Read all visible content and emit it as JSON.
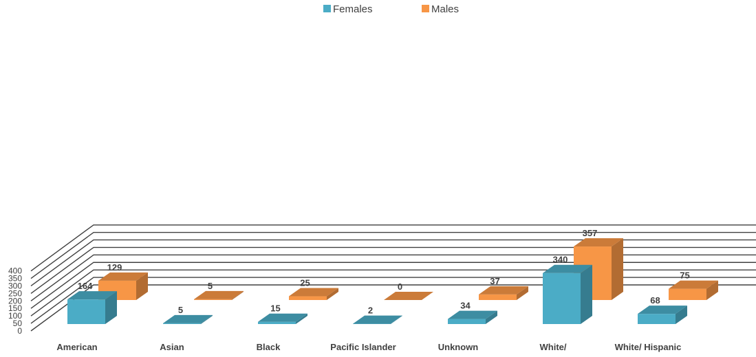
{
  "chart_data": {
    "type": "bar",
    "categories": [
      "American",
      "Asian",
      "Black",
      "Pacific Islander",
      "Unknown",
      "White/",
      "White/ Hispanic"
    ],
    "series": [
      {
        "name": "Females",
        "values": [
          164,
          5,
          15,
          2,
          34,
          340,
          68
        ],
        "color": "#4BACC6"
      },
      {
        "name": "Males",
        "values": [
          129,
          5,
          25,
          0,
          37,
          357,
          75
        ],
        "color": "#F79646"
      }
    ],
    "y_ticks": [
      0,
      50,
      100,
      150,
      200,
      250,
      300,
      350,
      400
    ],
    "ylim": [
      0,
      400
    ],
    "grid": true,
    "legend_position": "top-center",
    "style": "3d-clustered-column"
  }
}
